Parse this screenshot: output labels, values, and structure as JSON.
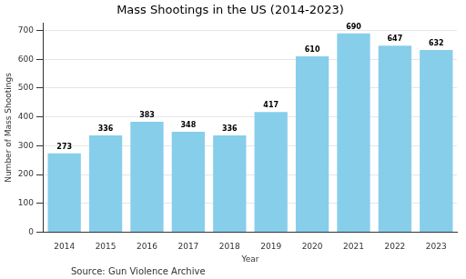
{
  "chart_data": {
    "type": "bar",
    "title": "Mass Shootings in the US (2014-2023)",
    "x_label": "Year",
    "y_label": "Number of Mass Shootings",
    "annotations": [
      "Source: Gun Violence Archive"
    ],
    "categories": [
      "2014",
      "2015",
      "2016",
      "2017",
      "2018",
      "2019",
      "2020",
      "2021",
      "2022",
      "2023"
    ],
    "values": [
      273,
      336,
      383,
      348,
      336,
      417,
      610,
      690,
      647,
      632
    ],
    "color": "#87ceeb",
    "ylim": [
      0,
      725
    ],
    "yticks": [
      0,
      100,
      200,
      300,
      400,
      500,
      600,
      700
    ],
    "grid": true,
    "data_labels": true
  }
}
